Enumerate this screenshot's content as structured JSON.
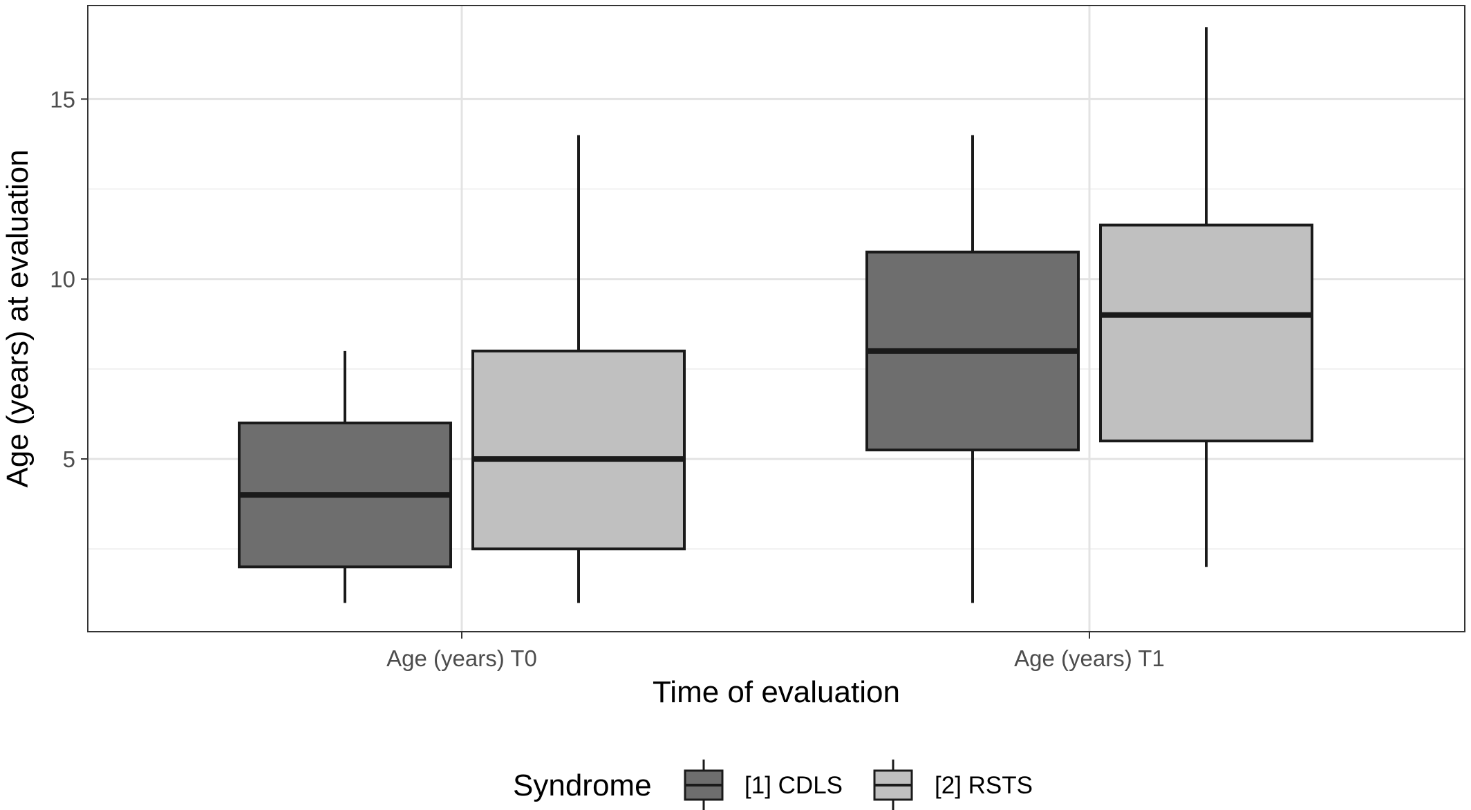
{
  "chart_data": {
    "type": "boxplot",
    "xlabel": "Time of evaluation",
    "ylabel": "Age (years) at evaluation",
    "ylim": [
      0.2,
      17.6
    ],
    "y_ticks": [
      5,
      10,
      15
    ],
    "y_tick_labels": [
      "5",
      "10",
      "15"
    ],
    "y_minor_ticks": [
      2.5,
      7.5,
      12.5
    ],
    "grid": true,
    "categories": [
      "Age (years) T0",
      "Age (years) T1"
    ],
    "legend": {
      "title": "Syndrome",
      "position": "bottom"
    },
    "series": [
      {
        "name": "[1] CDLS",
        "color": "#6e6e6e",
        "boxes": [
          {
            "min": 1,
            "q1": 2,
            "median": 4,
            "q3": 6,
            "max": 8
          },
          {
            "min": 1,
            "q1": 5.25,
            "median": 8,
            "q3": 10.75,
            "max": 14
          }
        ]
      },
      {
        "name": "[2] RSTS",
        "color": "#c0c0c0",
        "boxes": [
          {
            "min": 1,
            "q1": 2.5,
            "median": 5,
            "q3": 8,
            "max": 14
          },
          {
            "min": 2,
            "q1": 5.5,
            "median": 9,
            "q3": 11.5,
            "max": 17
          }
        ]
      }
    ]
  }
}
